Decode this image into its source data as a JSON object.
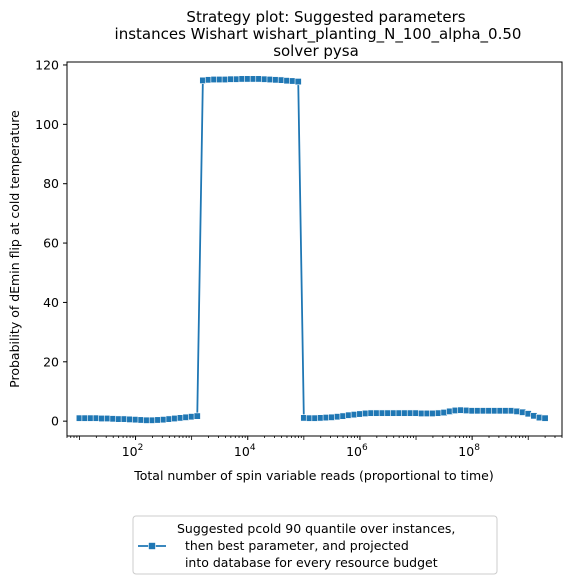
{
  "chart_data": {
    "type": "line",
    "title_lines": [
      "Strategy plot: Suggested parameters",
      "instances Wishart wishart_planting_N_100_alpha_0.50",
      "solver pysa"
    ],
    "xlabel": "Total number of spin variable reads (proportional to time)",
    "ylabel": "Probability of dEmin flip at cold temperature",
    "xscale": "log",
    "xlim": [
      6,
      4000000000.0
    ],
    "ylim": [
      -5,
      121
    ],
    "x_ticks": [
      {
        "value": 100,
        "base": "10",
        "exp": "2"
      },
      {
        "value": 10000,
        "base": "10",
        "exp": "4"
      },
      {
        "value": 1000000,
        "base": "10",
        "exp": "6"
      },
      {
        "value": 100000000,
        "base": "10",
        "exp": "8"
      }
    ],
    "y_ticks": [
      0,
      20,
      40,
      60,
      80,
      100,
      120
    ],
    "grid": false,
    "legend_position": "below plot, centered",
    "legend_lines": [
      "Suggested pcold 90 quantile over instances,",
      "  then best parameter, and projected",
      "  into database for every resource budget"
    ],
    "line_color": "#1f77b4",
    "marker": "square",
    "series": [
      {
        "name": "Suggested pcold 90 quantile over instances, then best parameter, and projected into database for every resource budget",
        "x": [
          10,
          12.6,
          15.8,
          20,
          25.1,
          31.6,
          39.8,
          50.1,
          63.1,
          79.4,
          100,
          126,
          158,
          200,
          251,
          316,
          398,
          501,
          631,
          794,
          1000,
          1259,
          1585,
          1995,
          2512,
          3162,
          3981,
          5012,
          6310,
          7943,
          10000,
          12589,
          15849,
          19953,
          25119,
          31623,
          39811,
          50119,
          63096,
          79433,
          100000,
          125893,
          158489,
          199526,
          251189,
          316228,
          398107,
          501187,
          630957,
          794328,
          1000000,
          1258925,
          1584893,
          1995262,
          2511886,
          3162278,
          3981072,
          5011872,
          6309573,
          7943282,
          10000000,
          12589254,
          15848932,
          19952623,
          25118864,
          31622777,
          39810717,
          50118723,
          63095734,
          79432823,
          100000000,
          125892541,
          158489319,
          199526231,
          251188643,
          316227766,
          398107171,
          501187234,
          630957344,
          794328235,
          1000000000,
          1258925412,
          1584893192,
          1995262315
        ],
        "y": [
          1.0,
          1.0,
          1.0,
          1.0,
          0.9,
          0.9,
          0.8,
          0.7,
          0.7,
          0.6,
          0.5,
          0.4,
          0.3,
          0.3,
          0.4,
          0.5,
          0.7,
          0.9,
          1.1,
          1.3,
          1.5,
          1.7,
          114.8,
          115.0,
          115.1,
          115.1,
          115.1,
          115.2,
          115.2,
          115.3,
          115.3,
          115.3,
          115.3,
          115.2,
          115.1,
          115.0,
          114.9,
          114.7,
          114.6,
          114.4,
          1.1,
          1.0,
          1.0,
          1.1,
          1.2,
          1.3,
          1.5,
          1.7,
          2.0,
          2.2,
          2.4,
          2.6,
          2.7,
          2.7,
          2.7,
          2.7,
          2.7,
          2.7,
          2.7,
          2.7,
          2.7,
          2.6,
          2.6,
          2.6,
          2.7,
          2.9,
          3.3,
          3.6,
          3.7,
          3.6,
          3.5,
          3.5,
          3.5,
          3.5,
          3.5,
          3.5,
          3.5,
          3.5,
          3.3,
          3.0,
          2.5,
          1.8,
          1.2,
          1.0
        ]
      }
    ]
  }
}
